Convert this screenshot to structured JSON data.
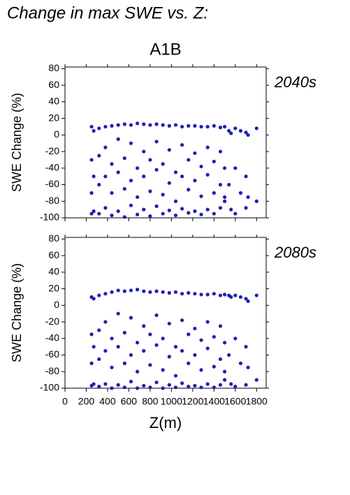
{
  "page_title": "Change in max SWE vs. Z:",
  "chart_title": "A1B",
  "chart_data": [
    {
      "type": "scatter",
      "label": "2040s",
      "ylabel": "SWE Change (%)",
      "color": "#1f1fb4",
      "xlim": [
        0,
        1890
      ],
      "ylim": [
        -100,
        82
      ],
      "yticks": [
        -100,
        -80,
        -60,
        -40,
        -20,
        0,
        20,
        40,
        60,
        80
      ],
      "x": [
        250,
        250,
        250,
        250,
        270,
        270,
        270,
        320,
        320,
        320,
        320,
        380,
        380,
        380,
        380,
        440,
        440,
        440,
        440,
        500,
        500,
        500,
        500,
        560,
        560,
        560,
        560,
        620,
        620,
        620,
        620,
        680,
        680,
        680,
        680,
        740,
        740,
        740,
        740,
        800,
        800,
        800,
        800,
        860,
        860,
        860,
        860,
        920,
        920,
        920,
        920,
        980,
        980,
        980,
        980,
        1040,
        1040,
        1040,
        1040,
        1100,
        1100,
        1100,
        1100,
        1160,
        1160,
        1160,
        1160,
        1220,
        1220,
        1220,
        1220,
        1280,
        1280,
        1280,
        1280,
        1340,
        1340,
        1340,
        1340,
        1400,
        1400,
        1400,
        1400,
        1460,
        1460,
        1460,
        1460,
        1500,
        1500,
        1500,
        1500,
        1540,
        1540,
        1560,
        1560,
        1600,
        1600,
        1600,
        1650,
        1650,
        1700,
        1700,
        1700,
        1720,
        1720,
        1800,
        1800
      ],
      "values": [
        10,
        -30,
        -70,
        -95,
        5,
        -50,
        -92,
        8,
        -25,
        -60,
        -95,
        10,
        -15,
        -50,
        -88,
        11,
        -35,
        -70,
        -97,
        12,
        -5,
        -45,
        -92,
        13,
        -28,
        -65,
        -99,
        12,
        -10,
        -55,
        -85,
        14,
        -40,
        -75,
        -96,
        13,
        -20,
        -50,
        -90,
        12,
        -30,
        -68,
        -98,
        13,
        -8,
        -42,
        -86,
        12,
        -35,
        -72,
        -95,
        11,
        -18,
        -58,
        -91,
        12,
        -45,
        -80,
        -97,
        10,
        -12,
        -50,
        -89,
        11,
        -30,
        -66,
        -94,
        11,
        -22,
        -55,
        -92,
        10,
        -38,
        -74,
        -96,
        10,
        -15,
        -48,
        -90,
        11,
        -32,
        -70,
        -95,
        9,
        -20,
        -60,
        -88,
        10,
        -40,
        -75,
        -80,
        5,
        -60,
        2,
        -90,
        8,
        -40,
        -95,
        5,
        -70,
        3,
        -50,
        -88,
        0,
        -75,
        8,
        -80
      ]
    },
    {
      "type": "scatter",
      "label": "2080s",
      "ylabel": "SWE Change (%)",
      "xlabel": "Z(m)",
      "color": "#1f1fb4",
      "xlim": [
        0,
        1890
      ],
      "ylim": [
        -100,
        82
      ],
      "yticks": [
        -100,
        -80,
        -60,
        -40,
        -20,
        0,
        20,
        40,
        60,
        80
      ],
      "xticks": [
        0,
        200,
        400,
        600,
        800,
        1000,
        1200,
        1400,
        1600,
        1800
      ],
      "x": [
        250,
        250,
        250,
        250,
        270,
        270,
        270,
        320,
        320,
        320,
        320,
        380,
        380,
        380,
        380,
        440,
        440,
        440,
        440,
        500,
        500,
        500,
        500,
        560,
        560,
        560,
        560,
        620,
        620,
        620,
        620,
        680,
        680,
        680,
        680,
        740,
        740,
        740,
        740,
        800,
        800,
        800,
        800,
        860,
        860,
        860,
        860,
        920,
        920,
        920,
        920,
        980,
        980,
        980,
        980,
        1040,
        1040,
        1040,
        1040,
        1100,
        1100,
        1100,
        1100,
        1160,
        1160,
        1160,
        1160,
        1220,
        1220,
        1220,
        1220,
        1280,
        1280,
        1280,
        1280,
        1340,
        1340,
        1340,
        1340,
        1400,
        1400,
        1400,
        1400,
        1460,
        1460,
        1460,
        1460,
        1500,
        1500,
        1500,
        1500,
        1540,
        1540,
        1560,
        1560,
        1600,
        1600,
        1600,
        1650,
        1650,
        1700,
        1700,
        1700,
        1720,
        1720,
        1800,
        1800
      ],
      "values": [
        10,
        -35,
        -70,
        -97,
        8,
        -50,
        -95,
        12,
        -30,
        -65,
        -98,
        14,
        -20,
        -55,
        -95,
        16,
        -40,
        -75,
        -100,
        18,
        -10,
        -50,
        -96,
        17,
        -33,
        -70,
        -99,
        18,
        -15,
        -60,
        -92,
        19,
        -45,
        -80,
        -100,
        17,
        -25,
        -55,
        -97,
        16,
        -35,
        -72,
        -99,
        17,
        -12,
        -48,
        -93,
        16,
        -40,
        -78,
        -100,
        15,
        -22,
        -62,
        -96,
        16,
        -50,
        -85,
        -99,
        14,
        -18,
        -55,
        -94,
        15,
        -35,
        -70,
        -98,
        14,
        -28,
        -60,
        -97,
        13,
        -42,
        -78,
        -99,
        13,
        -20,
        -52,
        -95,
        14,
        -38,
        -74,
        -99,
        12,
        -25,
        -65,
        -96,
        13,
        -45,
        -80,
        -90,
        12,
        -60,
        10,
        -95,
        12,
        -40,
        -98,
        10,
        -70,
        8,
        -50,
        -96,
        5,
        -75,
        12,
        -90
      ]
    }
  ]
}
